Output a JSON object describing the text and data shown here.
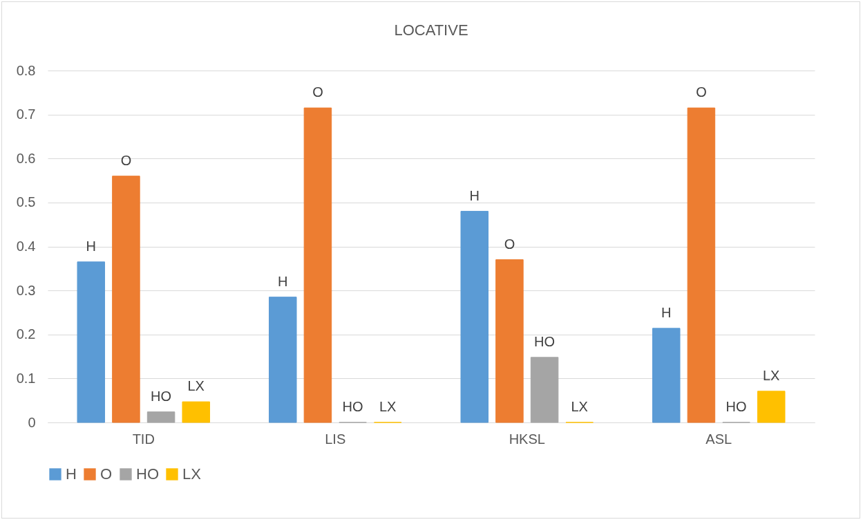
{
  "chart_data": {
    "type": "bar",
    "title": "LOCATIVE",
    "categories": [
      "TID",
      "LIS",
      "HKSL",
      "ASL"
    ],
    "series": [
      {
        "name": "H",
        "color": "#5b9bd5",
        "values": [
          0.365,
          0.285,
          0.48,
          0.214
        ],
        "value_labels": [
          "H",
          "H",
          "H",
          "H"
        ]
      },
      {
        "name": "O",
        "color": "#ed7d31",
        "values": [
          0.56,
          0.715,
          0.37,
          0.715
        ],
        "value_labels": [
          "O",
          "O",
          "O",
          "O"
        ]
      },
      {
        "name": "HO",
        "color": "#a5a5a5",
        "values": [
          0.024,
          0,
          0.148,
          0
        ],
        "value_labels": [
          "HO",
          "HO",
          "HO",
          "HO"
        ]
      },
      {
        "name": "LX",
        "color": "#ffc000",
        "values": [
          0.047,
          0,
          0,
          0.071
        ],
        "value_labels": [
          "LX",
          "LX",
          "LX",
          "LX"
        ]
      }
    ],
    "ylim": [
      0,
      0.8
    ],
    "yticks": [
      0,
      0.1,
      0.2,
      0.3,
      0.4,
      0.5,
      0.6,
      0.7,
      0.8
    ],
    "grid": "y",
    "legend": "bottom"
  }
}
